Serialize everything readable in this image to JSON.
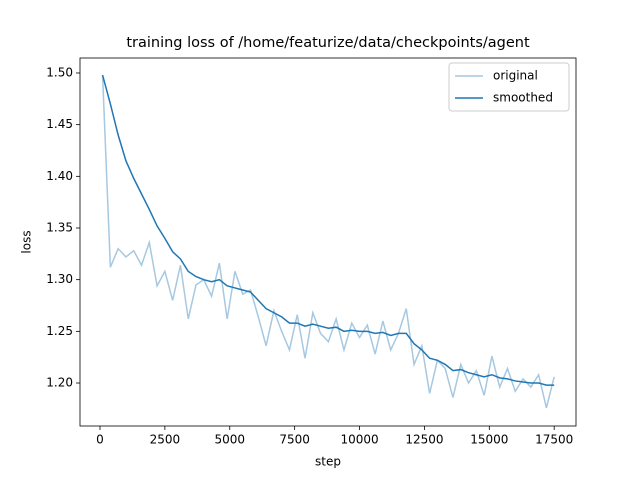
{
  "chart_data": {
    "type": "line",
    "title": "training loss of /home/featurize/data/checkpoints/agent",
    "x_label": "step",
    "y_label": "loss",
    "x": [
      100,
      400,
      700,
      1000,
      1300,
      1600,
      1900,
      2200,
      2500,
      2800,
      3100,
      3400,
      3700,
      4000,
      4300,
      4600,
      4900,
      5200,
      5500,
      5800,
      6100,
      6400,
      6700,
      7000,
      7300,
      7600,
      7900,
      8200,
      8500,
      8800,
      9100,
      9400,
      9700,
      10000,
      10300,
      10600,
      10900,
      11200,
      11500,
      11800,
      12100,
      12400,
      12700,
      13000,
      13300,
      13600,
      13900,
      14200,
      14500,
      14800,
      15100,
      15400,
      15700,
      16000,
      16300,
      16600,
      16900,
      17200,
      17500
    ],
    "series": [
      {
        "name": "original",
        "color": "#a6c8e1",
        "values": [
          1.498,
          1.312,
          1.33,
          1.322,
          1.328,
          1.314,
          1.336,
          1.294,
          1.308,
          1.28,
          1.314,
          1.262,
          1.295,
          1.3,
          1.284,
          1.316,
          1.262,
          1.308,
          1.286,
          1.29,
          1.264,
          1.236,
          1.27,
          1.25,
          1.232,
          1.266,
          1.224,
          1.268,
          1.248,
          1.24,
          1.262,
          1.232,
          1.258,
          1.244,
          1.256,
          1.228,
          1.26,
          1.232,
          1.248,
          1.272,
          1.218,
          1.236,
          1.19,
          1.222,
          1.214,
          1.186,
          1.218,
          1.2,
          1.212,
          1.188,
          1.226,
          1.196,
          1.214,
          1.192,
          1.204,
          1.196,
          1.208,
          1.176,
          1.206
        ]
      },
      {
        "name": "smoothed",
        "color": "#1f77b4",
        "values": [
          1.498,
          1.47,
          1.44,
          1.415,
          1.398,
          1.383,
          1.368,
          1.352,
          1.34,
          1.327,
          1.32,
          1.308,
          1.303,
          1.3,
          1.298,
          1.3,
          1.294,
          1.292,
          1.29,
          1.288,
          1.28,
          1.272,
          1.268,
          1.264,
          1.258,
          1.258,
          1.255,
          1.257,
          1.255,
          1.253,
          1.254,
          1.25,
          1.251,
          1.25,
          1.25,
          1.248,
          1.249,
          1.246,
          1.248,
          1.248,
          1.238,
          1.232,
          1.224,
          1.222,
          1.218,
          1.212,
          1.213,
          1.21,
          1.208,
          1.206,
          1.208,
          1.205,
          1.204,
          1.202,
          1.201,
          1.2,
          1.2,
          1.198,
          1.198
        ]
      }
    ],
    "xlim": [
      -770,
      18340
    ],
    "ylim": [
      1.1584,
      1.5145
    ],
    "xticks": [
      0,
      2500,
      5000,
      7500,
      10000,
      12500,
      15000,
      17500
    ],
    "yticks": [
      {
        "value": 1.2,
        "label": "1.20"
      },
      1.25,
      {
        "value": 1.3,
        "label": "1.30"
      },
      1.35,
      {
        "value": 1.4,
        "label": "1.40"
      },
      1.45,
      {
        "value": 1.5,
        "label": "1.50"
      }
    ],
    "grid": false,
    "legend": "upper right"
  }
}
